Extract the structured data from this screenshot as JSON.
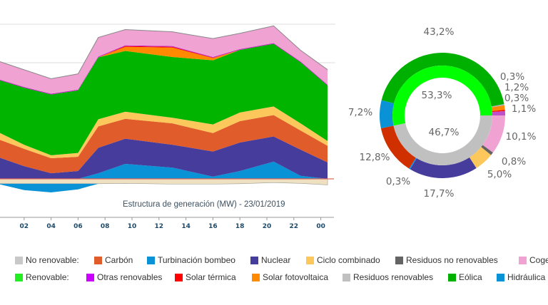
{
  "chart_data": [
    {
      "type": "area",
      "title": "Estructura de generación (MW) - 23/01/2019",
      "x_tick_labels": [
        "02",
        "04",
        "06",
        "08",
        "10",
        "12",
        "14",
        "16",
        "18",
        "20",
        "22",
        "00"
      ],
      "x_hours": [
        0,
        2,
        4,
        6,
        7.5,
        9.5,
        13,
        16,
        18,
        20.5,
        22.5,
        24.5
      ],
      "stacked": true,
      "grid": true,
      "series": [
        {
          "name": "Hidráulica",
          "color": "#0a92d6",
          "values": [
            0,
            0,
            0,
            0,
            1500,
            4000,
            3000,
            600,
            2100,
            4600,
            800,
            0
          ]
        },
        {
          "name": "Nuclear",
          "color": "#463c9c",
          "values": [
            5900,
            3400,
            1500,
            2100,
            6800,
            6700,
            6100,
            6700,
            7600,
            6700,
            7000,
            4400
          ]
        },
        {
          "name": "Carbón",
          "color": "#e05c2b",
          "values": [
            4800,
            4600,
            4000,
            3800,
            5700,
            5300,
            5700,
            4900,
            5700,
            5700,
            5100,
            4400
          ]
        },
        {
          "name": "Ciclo combinado",
          "color": "#fcc85c",
          "values": [
            1900,
            1100,
            800,
            1000,
            1900,
            1900,
            1500,
            2300,
            2300,
            2300,
            1900,
            1300
          ]
        },
        {
          "name": "Eólica",
          "color": "#00b400",
          "values": [
            13900,
            15200,
            16200,
            16700,
            16500,
            16200,
            16200,
            17100,
            16700,
            16700,
            16300,
            14800
          ]
        },
        {
          "name": "Solar fotovoltaica",
          "color": "#ff8a00",
          "values": [
            0,
            0,
            0,
            0,
            0,
            1100,
            2500,
            600,
            0,
            0,
            0,
            0
          ]
        },
        {
          "name": "Solar térmica",
          "color": "#ff0000",
          "values": [
            0,
            0,
            0,
            0,
            0,
            200,
            200,
            100,
            0,
            0,
            0,
            0
          ]
        },
        {
          "name": "Otras renovables",
          "color": "#c020c0",
          "values": [
            200,
            200,
            200,
            200,
            200,
            200,
            200,
            200,
            200,
            200,
            200,
            200
          ]
        },
        {
          "name": "Cogeneración",
          "color": "#f0a2d2",
          "values": [
            4800,
            4600,
            4000,
            4200,
            5100,
            4200,
            3800,
            4900,
            4200,
            4600,
            3000,
            4000
          ]
        }
      ],
      "negative_series": [
        {
          "color": "#efe1bf",
          "values": [
            -1300,
            -1300,
            -1300,
            -1300,
            -1300,
            -1200,
            -1400,
            -1400,
            -1300,
            -1000,
            -1200,
            -1600
          ]
        },
        {
          "name": "Turbinación bombeo",
          "color": "#0a92d6",
          "values": [
            0,
            -1700,
            -2300,
            -1500,
            0,
            0,
            0,
            0,
            0,
            0,
            0,
            0
          ]
        }
      ]
    },
    {
      "type": "pie",
      "style": "double-donut",
      "inner": [
        {
          "name": "No renovable",
          "value": 46.7,
          "label": "46,7%",
          "color": "#c0c0c0"
        },
        {
          "name": "Renovable",
          "value": 53.3,
          "label": "53,3%",
          "color": "#00ff00"
        }
      ],
      "outer": [
        {
          "name": "Cogeneración",
          "value": 10.1,
          "label": "10,1%",
          "color": "#f0a2d2"
        },
        {
          "name": "Residuos no renovables",
          "value": 0.8,
          "label": "0,8%",
          "color": "#646464"
        },
        {
          "name": "Ciclo combinado",
          "value": 5.0,
          "label": "5,0%",
          "color": "#fcc85c"
        },
        {
          "name": "Nuclear",
          "value": 17.7,
          "label": "17,7%",
          "color": "#463c9c"
        },
        {
          "name": "Turbinación bombeo",
          "value": 0.3,
          "label": "0,3%",
          "color": "#0a92f0"
        },
        {
          "name": "Carbón",
          "value": 12.8,
          "label": "12,8%",
          "color": "#d03000"
        },
        {
          "name": "Hidráulica",
          "value": 7.2,
          "label": "7,2%",
          "color": "#0a92d6"
        },
        {
          "name": "Eólica",
          "value": 43.2,
          "label": "43,2%",
          "color": "#00b000"
        },
        {
          "name": "Residuos renovables",
          "value": 0.3,
          "label": "0,3%",
          "color": "#b0b0b0"
        },
        {
          "name": "Solar fotovoltaica",
          "value": 1.2,
          "label": "1,2%",
          "color": "#ff8a00"
        },
        {
          "name": "Solar térmica",
          "value": 0.3,
          "label": "0,3%",
          "color": "#ff0000"
        },
        {
          "name": "Otras renovables",
          "value": 1.1,
          "label": "1,1%",
          "color": "#c050c8"
        }
      ]
    }
  ],
  "legend": {
    "row1": [
      {
        "label": "No renovable:",
        "color": "#c8c8c8"
      },
      {
        "label": "Carbón",
        "color": "#e05c2b"
      },
      {
        "label": "Turbinación bombeo",
        "color": "#0a92d6"
      },
      {
        "label": "Nuclear",
        "color": "#463c9c"
      },
      {
        "label": "Ciclo combinado",
        "color": "#fcc85c"
      },
      {
        "label": "Residuos no renovables",
        "color": "#646464"
      },
      {
        "label": "Cogenera",
        "color": "#f0a2d2"
      }
    ],
    "row2": [
      {
        "label": "Renovable:",
        "color": "#22ee22"
      },
      {
        "label": "Otras renovables",
        "color": "#cc00ff"
      },
      {
        "label": "Solar térmica",
        "color": "#ff0000"
      },
      {
        "label": "Solar fotovoltaica",
        "color": "#ff8a00"
      },
      {
        "label": "Residuos renovables",
        "color": "#c0c0c0"
      },
      {
        "label": "Eólica",
        "color": "#00b000"
      },
      {
        "label": "Hidráulica",
        "color": "#0a92d6"
      }
    ]
  }
}
